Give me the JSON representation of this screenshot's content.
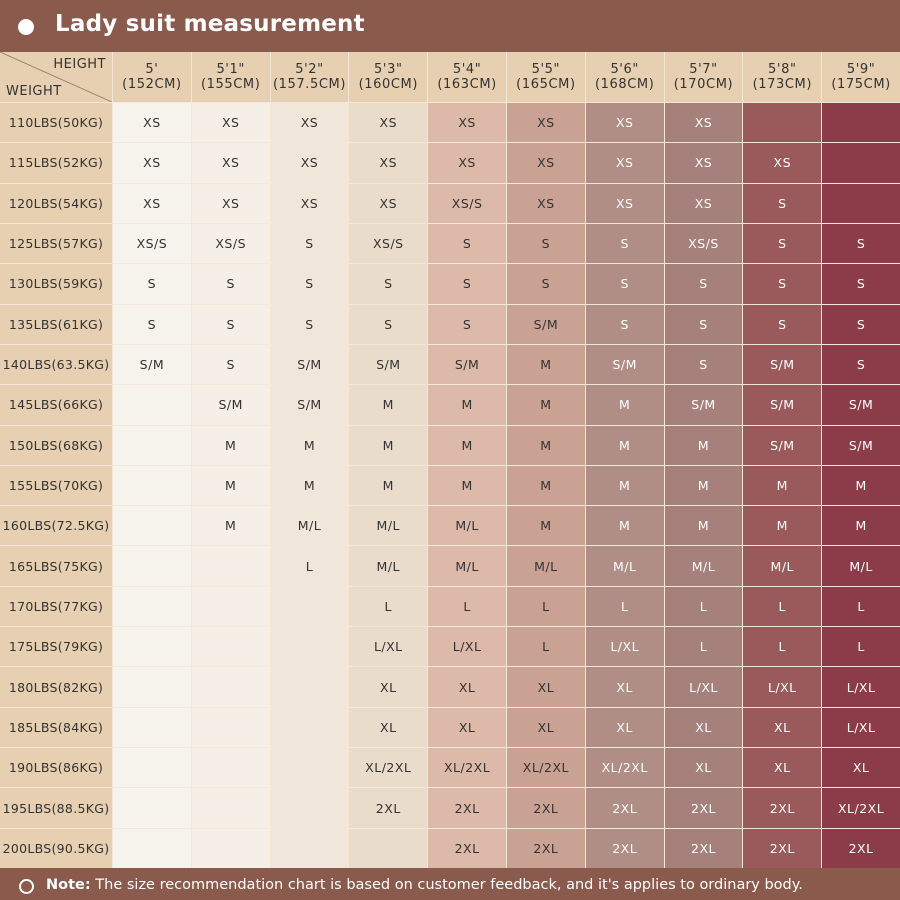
{
  "header": {
    "title": "Lady suit measurement"
  },
  "table": {
    "height_label": "HEIGHT",
    "weight_label": "WEIGHT",
    "column_colors": [
      "#f6f2ec",
      "#f5efe8",
      "#f1e6da",
      "#eadcca",
      "#dcb9a8",
      "#c9a294",
      "#b08d85",
      "#a6807a",
      "#9a5a5c",
      "#8c3c48"
    ],
    "column_text_colors": [
      "#333",
      "#333",
      "#333",
      "#333",
      "#333",
      "#333",
      "#fff",
      "#fff",
      "#fff",
      "#fff"
    ],
    "columns": [
      {
        "ft": "5'",
        "cm": "(152CM)"
      },
      {
        "ft": "5'1\"",
        "cm": "(155CM)"
      },
      {
        "ft": "5'2\"",
        "cm": "(157.5CM)"
      },
      {
        "ft": "5'3\"",
        "cm": "(160CM)"
      },
      {
        "ft": "5'4\"",
        "cm": "(163CM)"
      },
      {
        "ft": "5'5\"",
        "cm": "(165CM)"
      },
      {
        "ft": "5'6\"",
        "cm": "(168CM)"
      },
      {
        "ft": "5'7\"",
        "cm": "(170CM)"
      },
      {
        "ft": "5'8\"",
        "cm": "(173CM)"
      },
      {
        "ft": "5'9\"",
        "cm": "(175CM)"
      }
    ],
    "rows": [
      {
        "weight": "110LBS(50KG)",
        "sizes": [
          "XS",
          "XS",
          "XS",
          "XS",
          "XS",
          "XS",
          "XS",
          "XS",
          "",
          ""
        ]
      },
      {
        "weight": "115LBS(52KG)",
        "sizes": [
          "XS",
          "XS",
          "XS",
          "XS",
          "XS",
          "XS",
          "XS",
          "XS",
          "XS",
          ""
        ]
      },
      {
        "weight": "120LBS(54KG)",
        "sizes": [
          "XS",
          "XS",
          "XS",
          "XS",
          "XS/S",
          "XS",
          "XS",
          "XS",
          "S",
          ""
        ]
      },
      {
        "weight": "125LBS(57KG)",
        "sizes": [
          "XS/S",
          "XS/S",
          "S",
          "XS/S",
          "S",
          "S",
          "S",
          "XS/S",
          "S",
          "S"
        ]
      },
      {
        "weight": "130LBS(59KG)",
        "sizes": [
          "S",
          "S",
          "S",
          "S",
          "S",
          "S",
          "S",
          "S",
          "S",
          "S"
        ]
      },
      {
        "weight": "135LBS(61KG)",
        "sizes": [
          "S",
          "S",
          "S",
          "S",
          "S",
          "S/M",
          "S",
          "S",
          "S",
          "S"
        ]
      },
      {
        "weight": "140LBS(63.5KG)",
        "sizes": [
          "S/M",
          "S",
          "S/M",
          "S/M",
          "S/M",
          "M",
          "S/M",
          "S",
          "S/M",
          "S"
        ]
      },
      {
        "weight": "145LBS(66KG)",
        "sizes": [
          "",
          "S/M",
          "S/M",
          "M",
          "M",
          "M",
          "M",
          "S/M",
          "S/M",
          "S/M"
        ]
      },
      {
        "weight": "150LBS(68KG)",
        "sizes": [
          "",
          "M",
          "M",
          "M",
          "M",
          "M",
          "M",
          "M",
          "S/M",
          "S/M"
        ]
      },
      {
        "weight": "155LBS(70KG)",
        "sizes": [
          "",
          "M",
          "M",
          "M",
          "M",
          "M",
          "M",
          "M",
          "M",
          "M"
        ]
      },
      {
        "weight": "160LBS(72.5KG)",
        "sizes": [
          "",
          "M",
          "M/L",
          "M/L",
          "M/L",
          "M",
          "M",
          "M",
          "M",
          "M"
        ]
      },
      {
        "weight": "165LBS(75KG)",
        "sizes": [
          "",
          "",
          "L",
          "M/L",
          "M/L",
          "M/L",
          "M/L",
          "M/L",
          "M/L",
          "M/L"
        ]
      },
      {
        "weight": "170LBS(77KG)",
        "sizes": [
          "",
          "",
          "",
          "L",
          "L",
          "L",
          "L",
          "L",
          "L",
          "L"
        ]
      },
      {
        "weight": "175LBS(79KG)",
        "sizes": [
          "",
          "",
          "",
          "L/XL",
          "L/XL",
          "L",
          "L/XL",
          "L",
          "L",
          "L"
        ]
      },
      {
        "weight": "180LBS(82KG)",
        "sizes": [
          "",
          "",
          "",
          "XL",
          "XL",
          "XL",
          "XL",
          "L/XL",
          "L/XL",
          "L/XL"
        ]
      },
      {
        "weight": "185LBS(84KG)",
        "sizes": [
          "",
          "",
          "",
          "XL",
          "XL",
          "XL",
          "XL",
          "XL",
          "XL",
          "L/XL"
        ]
      },
      {
        "weight": "190LBS(86KG)",
        "sizes": [
          "",
          "",
          "",
          "XL/2XL",
          "XL/2XL",
          "XL/2XL",
          "XL/2XL",
          "XL",
          "XL",
          "XL"
        ]
      },
      {
        "weight": "195LBS(88.5KG)",
        "sizes": [
          "",
          "",
          "",
          "2XL",
          "2XL",
          "2XL",
          "2XL",
          "2XL",
          "2XL",
          "XL/2XL"
        ]
      },
      {
        "weight": "200LBS(90.5KG)",
        "sizes": [
          "",
          "",
          "",
          "",
          "2XL",
          "2XL",
          "2XL",
          "2XL",
          "2XL",
          "2XL"
        ]
      }
    ]
  },
  "footer": {
    "note_label": "Note:",
    "note_text": " The size recommendation chart is based on customer feedback, and it's applies to ordinary body."
  }
}
